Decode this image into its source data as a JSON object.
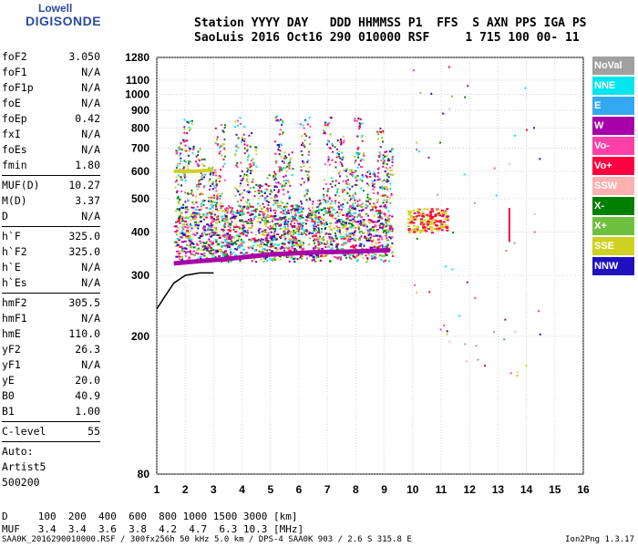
{
  "logo": {
    "line1": "Lowell",
    "line2": "DIGISONDE"
  },
  "header": {
    "line1": "Station YYYY DAY   DDD HHMMSS P1  FFS  S AXN PPS IGA PS",
    "line2": "SaoLuis 2016 Oct16 290 010000 RSF     1 715 100 00- 11"
  },
  "params_group1": [
    {
      "k": "foF2",
      "v": "3.050"
    },
    {
      "k": "foF1",
      "v": "N/A"
    },
    {
      "k": "foF1p",
      "v": "N/A"
    },
    {
      "k": "foE",
      "v": "N/A"
    },
    {
      "k": "foEp",
      "v": "0.42"
    },
    {
      "k": "fxI",
      "v": "N/A"
    },
    {
      "k": "foEs",
      "v": "N/A"
    },
    {
      "k": "fmin",
      "v": "1.80"
    }
  ],
  "params_group2": [
    {
      "k": "MUF(D)",
      "v": "10.27"
    },
    {
      "k": "M(D)",
      "v": "3.37"
    },
    {
      "k": "D",
      "v": "N/A"
    }
  ],
  "params_group3": [
    {
      "k": "h`F",
      "v": "325.0"
    },
    {
      "k": "h`F2",
      "v": "325.0"
    },
    {
      "k": "h`E",
      "v": "N/A"
    },
    {
      "k": "h`Es",
      "v": "N/A"
    }
  ],
  "params_group4": [
    {
      "k": "hmF2",
      "v": "305.5"
    },
    {
      "k": "hmF1",
      "v": "N/A"
    },
    {
      "k": "hmE",
      "v": "110.0"
    },
    {
      "k": "yF2",
      "v": "26.3"
    },
    {
      "k": "yF1",
      "v": "N/A"
    },
    {
      "k": "yE",
      "v": "20.0"
    },
    {
      "k": "B0",
      "v": "40.9"
    },
    {
      "k": "B1",
      "v": "1.00"
    }
  ],
  "params_group5": [
    {
      "k": "C-level",
      "v": "55"
    }
  ],
  "auto_lines": [
    "Auto:",
    "Artist5",
    "500200"
  ],
  "legend": [
    {
      "label": "NoVal",
      "color": "#a0a0a0"
    },
    {
      "label": "NNE",
      "color": "#00e5ee"
    },
    {
      "label": "E",
      "color": "#33a8f0"
    },
    {
      "label": "W",
      "color": "#a800a8"
    },
    {
      "label": "Vo-",
      "color": "#ff40a8"
    },
    {
      "label": "Vo+",
      "color": "#ff0040"
    },
    {
      "label": "SSW",
      "color": "#ffb0b0"
    },
    {
      "label": "X-",
      "color": "#008000"
    },
    {
      "label": "X+",
      "color": "#70c040"
    },
    {
      "label": "SSE",
      "color": "#d0d020"
    },
    {
      "label": "NNW",
      "color": "#2010c0"
    }
  ],
  "bottom": {
    "d_line": "D     100  200  400  600  800 1000 1500 3000 [km]",
    "muf_line": "MUF   3.4  3.4  3.6  3.8  4.2  4.7  6.3 10.3 [MHz]"
  },
  "footer": "SAA0K_2016290010000.RSF / 300fx256h 50 kHz 5.0 km / DPS-4 SAA0K 903 / 2.6 S 315.8 E",
  "version": "Ion2Png 1.3.17",
  "chart_data": {
    "type": "scatter",
    "xlabel": "",
    "ylabel": "",
    "xlim": [
      1,
      16
    ],
    "ylim": [
      80,
      1280
    ],
    "x_ticks": [
      1,
      2,
      3,
      4,
      5,
      6,
      7,
      8,
      9,
      10,
      11,
      12,
      13,
      14,
      15,
      16
    ],
    "y_ticks": [
      80,
      200,
      300,
      400,
      500,
      600,
      700,
      800,
      900,
      1000,
      1100,
      1280
    ],
    "y_scale": "log",
    "grid": true,
    "profile_curve": {
      "x": [
        1.0,
        1.3,
        1.6,
        2.0,
        2.5,
        3.0
      ],
      "y": [
        240,
        262,
        285,
        300,
        305,
        305
      ]
    },
    "foF2_trace": {
      "x": [
        1.6,
        2.5,
        3.5,
        5,
        6.5,
        8,
        9.2
      ],
      "y": [
        325,
        330,
        335,
        345,
        350,
        352,
        355
      ],
      "color": "#a800a8"
    },
    "upper_trace": {
      "x": [
        1.6,
        2.3,
        3.0
      ],
      "y": [
        600,
        600,
        605
      ],
      "color": "#d0d020"
    },
    "red_mark": {
      "x": 13.4,
      "y": [
        375,
        470
      ],
      "color": "#ff0040"
    }
  }
}
